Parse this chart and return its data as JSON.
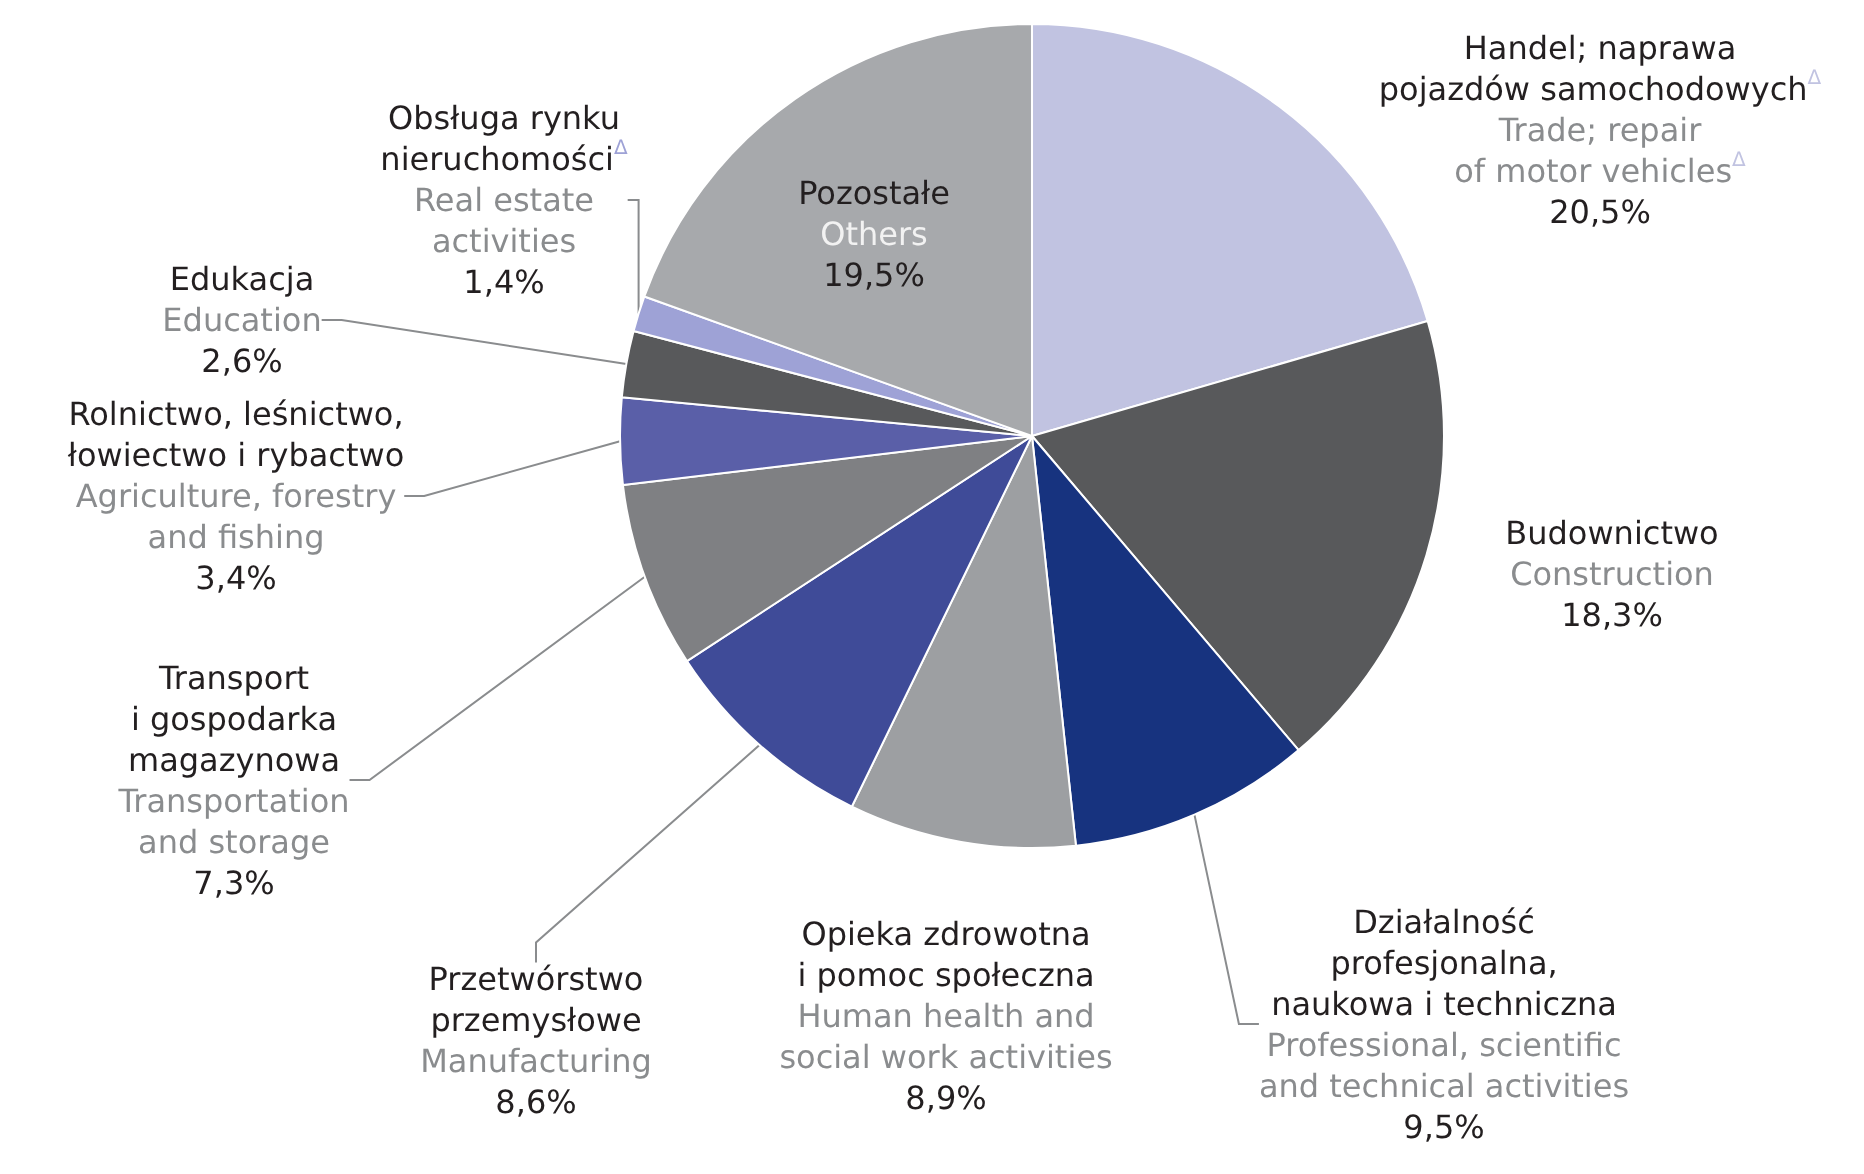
{
  "chart_data": {
    "type": "pie",
    "legend": false,
    "categories": [
      "Handel; naprawa\npojazdów samochodowych$^{Δ}$\n\nTrade; repair\nof motor vehicles$^{Δ}$",
      "Budownictwo\n\nConstruction",
      "Działalność\nprofesjonalna,\nnaukowa i techniczna\n\nProfessional, scientific\nand technical activities",
      "Opieka zdrowotna\ni pomoc społeczna\n\nHuman health and\nsocial work activities",
      "Przetwórstwo\nprzemysłowe\n\nManufacturing",
      "Transport\ni gospodarka\nmagazynowa\n\nTransportation\nand storage",
      "Rolnictwo, leśnictwo,\nłowiectwo i rybactwo\n\nAgriculture, forestry\nand fishing",
      "Edukacja\n\nEducation",
      "Obsługa rynku\nnieruchomości$^{Δ}$\n\nReal estate\nactivities",
      "Pozostałe\n\nOthers"
    ],
    "values": [
      20.5,
      18.3,
      9.5,
      8.9,
      8.6,
      7.3,
      3.4,
      2.6,
      1.4,
      19.5
    ],
    "value_labels": [
      "20,5%",
      "18,3%",
      "9,5%",
      "8,9%",
      "8,6%",
      "7,3%",
      "3,4%",
      "2,6%",
      "1,4%",
      "19,5%"
    ],
    "colors": [
      "#c1c3e1",
      "#58595b",
      "#17337f",
      "#9d9fa2",
      "#3f4b98",
      "#7f8083",
      "#5a5fa8",
      "#58595b",
      "#9ea2d6",
      "#a7a9ac"
    ]
  }
}
